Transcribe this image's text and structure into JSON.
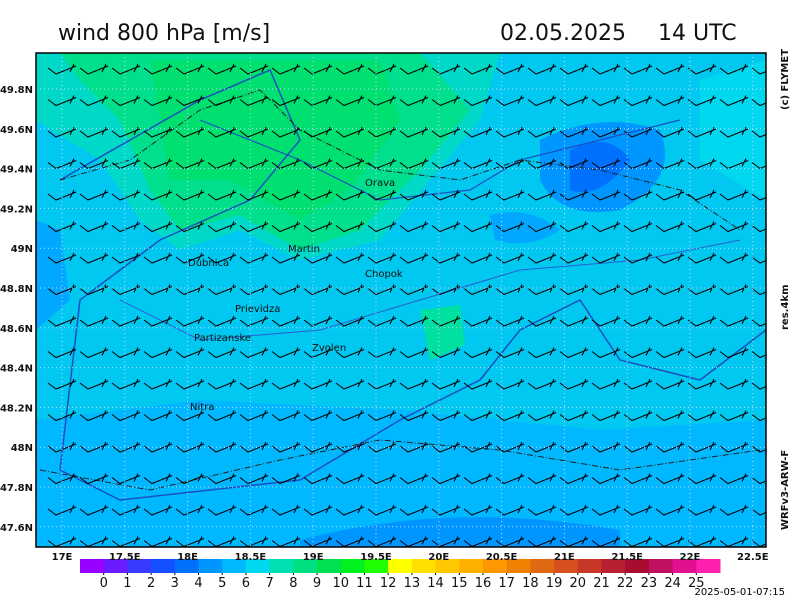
{
  "header": {
    "title": "wind 800 hPa [m/s]",
    "date": "02.05.2025",
    "time": "14 UTC"
  },
  "side_labels": {
    "copyright": "(c) FLYMET",
    "resolution": "res.4km",
    "model": "WRFv3-ARW-F"
  },
  "map": {
    "lon_ticks": [
      {
        "value": 17,
        "label": "17E"
      },
      {
        "value": 17.5,
        "label": "17.5E"
      },
      {
        "value": 18,
        "label": "18E"
      },
      {
        "value": 18.5,
        "label": "18.5E"
      },
      {
        "value": 19,
        "label": "19E"
      },
      {
        "value": 19.5,
        "label": "19.5E"
      },
      {
        "value": 20,
        "label": "20E"
      },
      {
        "value": 20.5,
        "label": "20.5E"
      },
      {
        "value": 21,
        "label": "21E"
      },
      {
        "value": 21.5,
        "label": "21.5E"
      },
      {
        "value": 22,
        "label": "22E"
      },
      {
        "value": 22.5,
        "label": "22.5E"
      }
    ],
    "lat_ticks": [
      {
        "value": 49.8,
        "label": "49.8N"
      },
      {
        "value": 49.6,
        "label": "49.6N"
      },
      {
        "value": 49.4,
        "label": "49.4N"
      },
      {
        "value": 49.2,
        "label": "49.2N"
      },
      {
        "value": 49,
        "label": "49N"
      },
      {
        "value": 48.8,
        "label": "48.8N"
      },
      {
        "value": 48.6,
        "label": "48.6N"
      },
      {
        "value": 48.4,
        "label": "48.4N"
      },
      {
        "value": 48.2,
        "label": "48.2N"
      },
      {
        "value": 48,
        "label": "48N"
      },
      {
        "value": 47.8,
        "label": "47.8N"
      },
      {
        "value": 47.6,
        "label": "47.6N"
      }
    ],
    "cities": [
      "Orava",
      "Martin",
      "Dubnica",
      "Chopok",
      "Prievidza",
      "Partizanske",
      "Zvolen",
      "Nitra"
    ]
  },
  "colorbar": {
    "levels": [
      0,
      1,
      2,
      3,
      4,
      5,
      6,
      7,
      8,
      9,
      10,
      11,
      12,
      13,
      14,
      15,
      16,
      17,
      18,
      19,
      20,
      21,
      22,
      23,
      24,
      25
    ],
    "colors": [
      "#9a00ff",
      "#6a1cff",
      "#3a3aff",
      "#1450ff",
      "#0070ff",
      "#0096ff",
      "#00b8ff",
      "#00d8f0",
      "#00e0b0",
      "#00e080",
      "#00e050",
      "#00f020",
      "#20ff00",
      "#ffff00",
      "#ffe000",
      "#ffc800",
      "#ffb000",
      "#ff9800",
      "#f08000",
      "#e06810",
      "#d85020",
      "#c83828",
      "#b82030",
      "#a80c30",
      "#c01060",
      "#e01090",
      "#ff20b0"
    ]
  },
  "footer": {
    "timestamp": "2025-05-01-07:15"
  }
}
